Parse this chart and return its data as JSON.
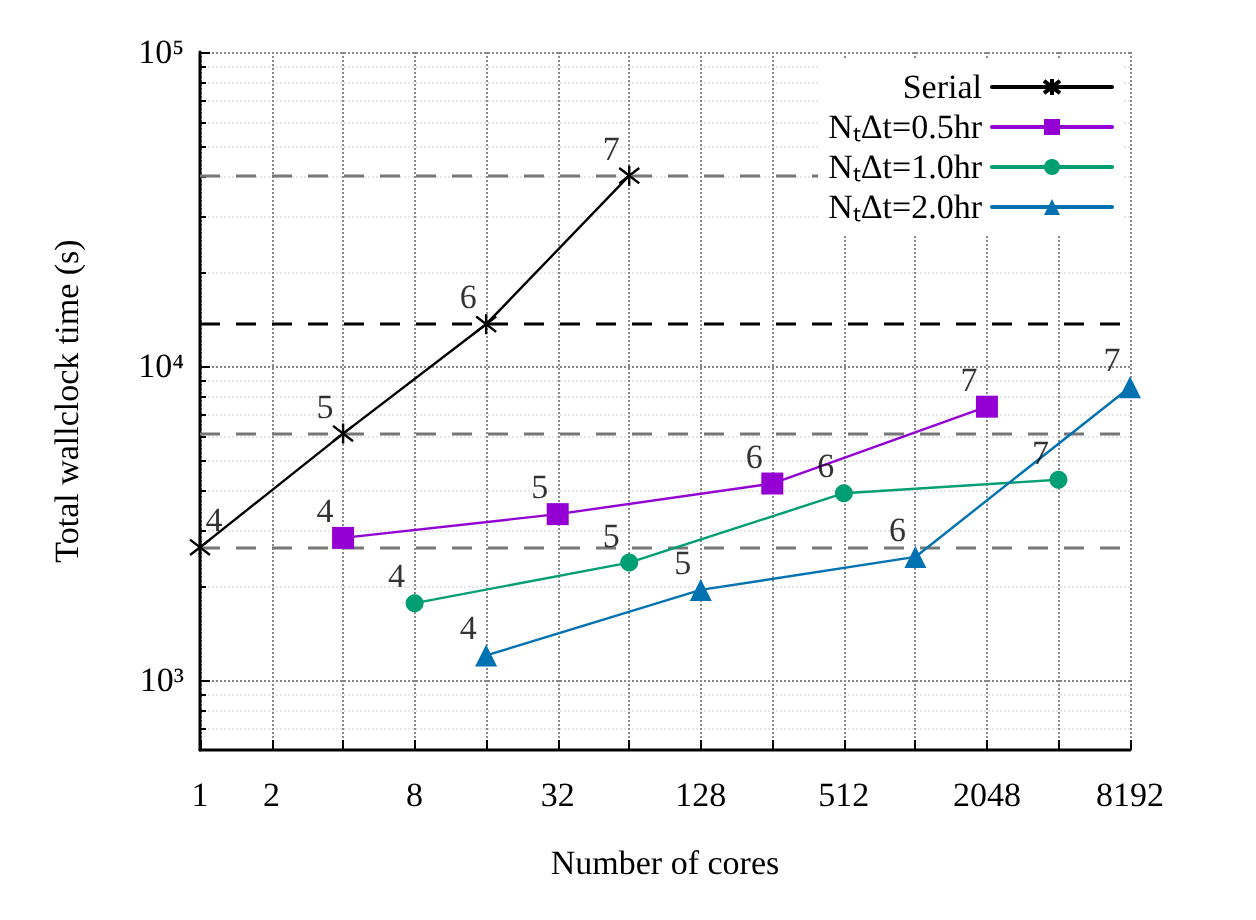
{
  "chart_data": {
    "type": "line",
    "xlabel": "Number of cores",
    "ylabel": "Total wallclock time (s)",
    "log": "xy",
    "xlim": [
      1,
      8192
    ],
    "ylim": [
      600,
      100000
    ],
    "xticks": [
      1,
      2,
      {
        "value": 4,
        "label": null
      },
      8,
      {
        "value": 16,
        "label": null
      },
      32,
      {
        "value": 64,
        "label": null
      },
      128,
      {
        "value": 256,
        "label": null
      },
      512,
      {
        "value": 1024,
        "label": null
      },
      2048,
      {
        "value": 4096,
        "label": null
      },
      8192
    ],
    "yticks": [
      {
        "value": 1000,
        "label": "10³"
      },
      {
        "value": 10000,
        "label": "10⁴"
      },
      {
        "value": 100000,
        "label": "10⁵"
      }
    ],
    "grid": true,
    "legend": "top right",
    "series": [
      {
        "name": "Serial",
        "color": "#000000",
        "marker": "cross",
        "x": [
          1,
          4,
          16,
          64
        ],
        "values": [
          2650,
          6100,
          13600,
          40400
        ]
      },
      {
        "name": "NₜΔt=0.5hr",
        "color": "#9400d3",
        "marker": "square",
        "x": [
          4,
          32,
          256,
          2048
        ],
        "values": [
          2840,
          3380,
          4230,
          7430
        ]
      },
      {
        "name": "NₜΔt=1.0hr",
        "color": "#009e73",
        "marker": "circle",
        "x": [
          8,
          64,
          512,
          4096
        ],
        "values": [
          1760,
          2370,
          3940,
          4350
        ]
      },
      {
        "name": "NₜΔt=2.0hr",
        "color": "#0072b2",
        "marker": "triangle",
        "x": [
          16,
          128,
          1024,
          8192
        ],
        "values": [
          1200,
          1940,
          2470,
          8570
        ]
      }
    ],
    "ref_lines": [
      {
        "axis": "y",
        "value": 2650,
        "color": "#777777",
        "line_style": "dashed"
      },
      {
        "axis": "y",
        "value": 6100,
        "color": "#777777",
        "line_style": "dashed"
      },
      {
        "axis": "y",
        "value": 13600,
        "color": "#000000",
        "line_style": "dashed"
      },
      {
        "axis": "y",
        "value": 40400,
        "color": "#777777",
        "line_style": "dashed"
      }
    ],
    "annotations": [
      {
        "text": "4",
        "x": 1,
        "y": 2650
      },
      {
        "text": "5",
        "x": 4,
        "y": 6100
      },
      {
        "text": "6",
        "x": 16,
        "y": 13600
      },
      {
        "text": "7",
        "x": 64,
        "y": 40400
      },
      {
        "text": "4",
        "x": 4,
        "y": 2840
      },
      {
        "text": "5",
        "x": 32,
        "y": 3380
      },
      {
        "text": "6",
        "x": 256,
        "y": 4230
      },
      {
        "text": "7",
        "x": 2048,
        "y": 7430
      },
      {
        "text": "4",
        "x": 8,
        "y": 1760
      },
      {
        "text": "5",
        "x": 64,
        "y": 2370
      },
      {
        "text": "6",
        "x": 512,
        "y": 3940
      },
      {
        "text": "7",
        "x": 4096,
        "y": 4350
      },
      {
        "text": "4",
        "x": 16,
        "y": 1200
      },
      {
        "text": "5",
        "x": 128,
        "y": 1940
      },
      {
        "text": "6",
        "x": 1024,
        "y": 2470
      },
      {
        "text": "7",
        "x": 8192,
        "y": 8570
      }
    ]
  }
}
